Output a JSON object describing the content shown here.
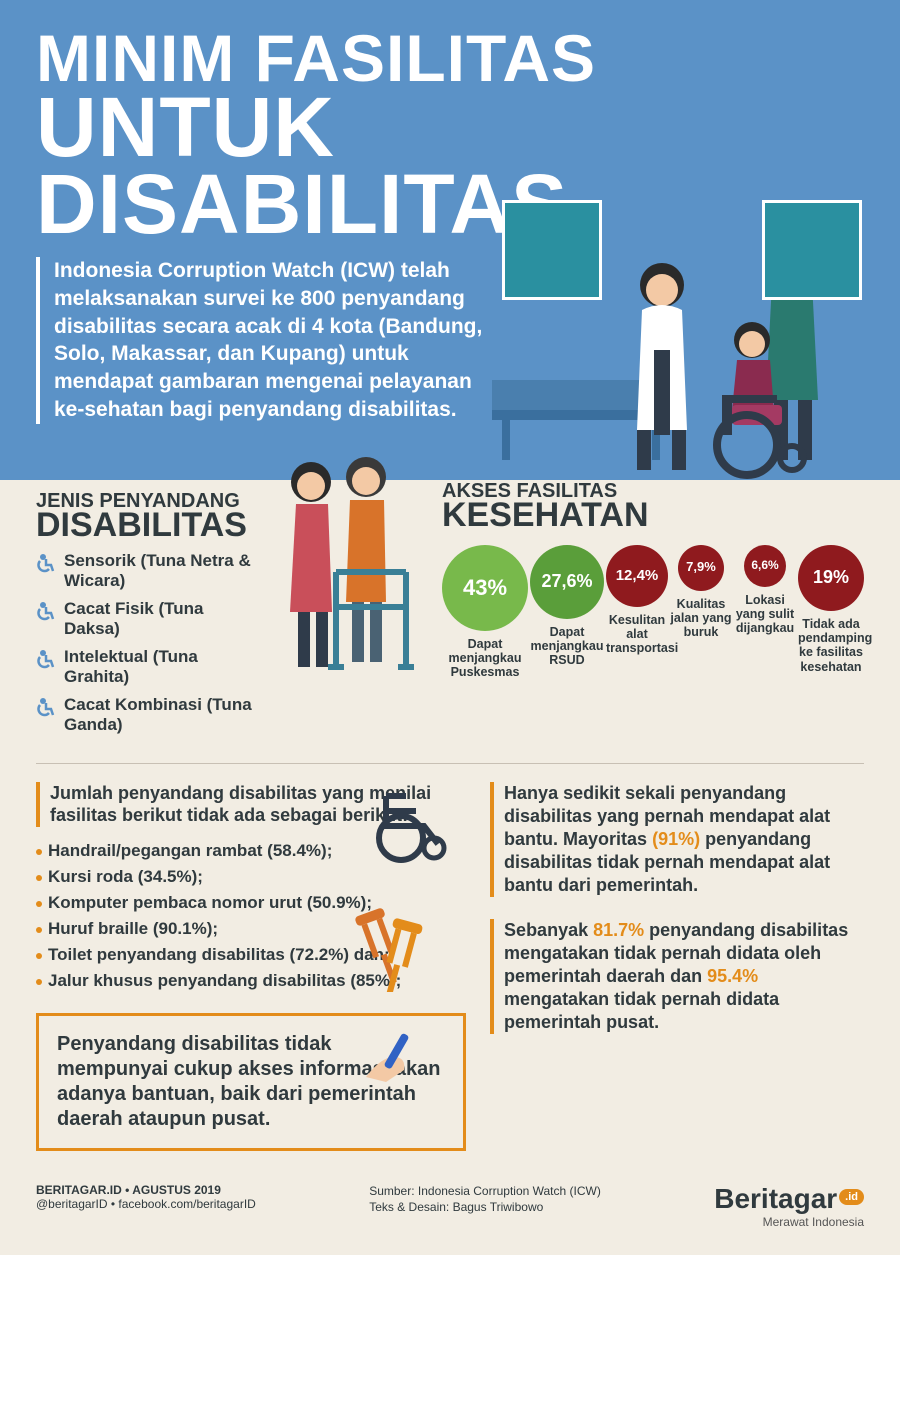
{
  "colors": {
    "hero_bg": "#5b92c7",
    "page_bg": "#f2ede3",
    "text": "#303a3e",
    "accent": "#e38c1a",
    "green1": "#78b94b",
    "green2": "#5a9e3a",
    "red": "#8f1a1e"
  },
  "title": {
    "line1": "MINIM FASILITAS",
    "line2": "UNTUK DISABILITAS"
  },
  "intro": "Indonesia Corruption Watch (ICW) telah melaksanakan survei ke 800 penyandang disabilitas secara acak di 4 kota (Bandung, Solo, Makassar, dan Kupang) untuk mendapat gambaran mengenai pelayanan ke-sehatan bagi penyandang disabilitas.",
  "jenis": {
    "title_small": "JENIS PENYANDANG",
    "title_big": "DISABILITAS",
    "items": [
      "Sensorik (Tuna Netra & Wicara)",
      "Cacat Fisik (Tuna Daksa)",
      "Intelektual (Tuna Grahita)",
      "Cacat Kombinasi (Tuna Ganda)"
    ]
  },
  "akses": {
    "title_small": "AKSES FASILITAS",
    "title_big": "KESEHATAN",
    "bubbles": [
      {
        "value": "43%",
        "label": "Dapat menjangkau Puskesmas",
        "size": 86,
        "fontsize": 22,
        "color": "#78b94b"
      },
      {
        "value": "27,6%",
        "label": "Dapat menjangkau RSUD",
        "size": 74,
        "fontsize": 18,
        "color": "#5a9e3a"
      },
      {
        "value": "12,4%",
        "label": "Kesulitan alat transportasi",
        "size": 62,
        "fontsize": 15,
        "color": "#8f1a1e"
      },
      {
        "value": "7,9%",
        "label": "Kualitas jalan yang buruk",
        "size": 46,
        "fontsize": 13,
        "color": "#8f1a1e"
      },
      {
        "value": "6,6%",
        "label": "Lokasi yang sulit dijangkau",
        "size": 42,
        "fontsize": 12,
        "color": "#8f1a1e"
      },
      {
        "value": "19%",
        "label": "Tidak ada pendamping ke fasilitas kesehatan",
        "size": 66,
        "fontsize": 18,
        "color": "#8f1a1e"
      }
    ]
  },
  "facilities": {
    "lead": "Jumlah penyandang disabilitas yang menilai fasilitas berikut tidak ada sebagai berikut:",
    "items": [
      {
        "label": "Handrail/pegangan rambat",
        "pct": "(58.4%)",
        "suffix": ";"
      },
      {
        "label": "Kursi roda",
        "pct": "(34.5%)",
        "suffix": ";"
      },
      {
        "label": "Komputer pembaca nomor urut",
        "pct": "(50.9%)",
        "suffix": ";"
      },
      {
        "label": "Huruf braille",
        "pct": "(90.1%)",
        "suffix": ";"
      },
      {
        "label": "Toilet penyandang disabilitas",
        "pct": "(72.2%)",
        "suffix": " dan;"
      },
      {
        "label": "Jalur khusus penyandang disabilitas",
        "pct": "(85%)",
        "suffix": ";"
      }
    ]
  },
  "callout": "Penyandang disabilitas tidak mempunyai cukup akses informasi akan adanya bantuan, baik dari pemerintah daerah ataupun pusat.",
  "blurb1": {
    "pre": "Hanya sedikit sekali penyandang disabilitas yang pernah mendapat alat bantu. Mayoritas ",
    "hl": "(91%)",
    "post": " penyandang disabilitas tidak pernah mendapat alat bantu dari pemerintah."
  },
  "blurb2": {
    "p1": "Sebanyak ",
    "h1": "81.7%",
    "p2": " penyandang disabilitas mengatakan tidak pernah didata oleh pemerintah daerah dan ",
    "h2": "95.4%",
    "p3": " mengatakan tidak pernah didata pemerintah pusat."
  },
  "footer": {
    "site": "BERITAGAR.ID • AGUSTUS 2019",
    "social": "@beritagarID • facebook.com/beritagarID",
    "source": "Sumber: Indonesia Corruption Watch (ICW)",
    "credit": "Teks & Desain: Bagus Triwibowo",
    "brand": "Beritagar",
    "brand_suffix": ".id",
    "tagline": "Merawat Indonesia"
  }
}
